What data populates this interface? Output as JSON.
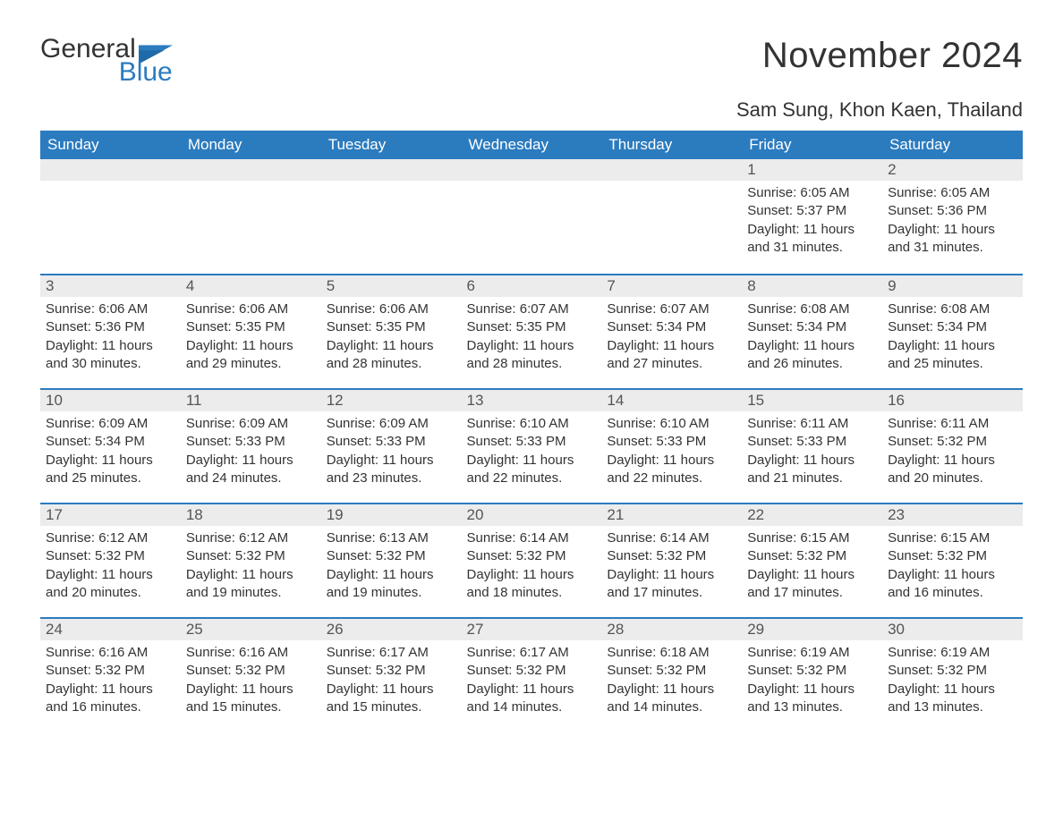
{
  "logo": {
    "word1": "General",
    "word2": "Blue",
    "word1_color": "#333333",
    "word2_color": "#2b7bbf",
    "flag_color": "#2b7bbf"
  },
  "title": "November 2024",
  "location": "Sam Sung, Khon Kaen, Thailand",
  "style": {
    "header_bg": "#2b7bbf",
    "header_fg": "#ffffff",
    "daynum_bg": "#ececec",
    "row_border": "#2b7bbf",
    "body_fg": "#333333",
    "page_bg": "#ffffff",
    "th_fontsize": 17,
    "title_fontsize": 40,
    "location_fontsize": 22,
    "body_fontsize": 15
  },
  "weekdays": [
    "Sunday",
    "Monday",
    "Tuesday",
    "Wednesday",
    "Thursday",
    "Friday",
    "Saturday"
  ],
  "leading_blanks": 5,
  "days": [
    {
      "n": 1,
      "sunrise": "6:05 AM",
      "sunset": "5:37 PM",
      "daylight": "11 hours and 31 minutes."
    },
    {
      "n": 2,
      "sunrise": "6:05 AM",
      "sunset": "5:36 PM",
      "daylight": "11 hours and 31 minutes."
    },
    {
      "n": 3,
      "sunrise": "6:06 AM",
      "sunset": "5:36 PM",
      "daylight": "11 hours and 30 minutes."
    },
    {
      "n": 4,
      "sunrise": "6:06 AM",
      "sunset": "5:35 PM",
      "daylight": "11 hours and 29 minutes."
    },
    {
      "n": 5,
      "sunrise": "6:06 AM",
      "sunset": "5:35 PM",
      "daylight": "11 hours and 28 minutes."
    },
    {
      "n": 6,
      "sunrise": "6:07 AM",
      "sunset": "5:35 PM",
      "daylight": "11 hours and 28 minutes."
    },
    {
      "n": 7,
      "sunrise": "6:07 AM",
      "sunset": "5:34 PM",
      "daylight": "11 hours and 27 minutes."
    },
    {
      "n": 8,
      "sunrise": "6:08 AM",
      "sunset": "5:34 PM",
      "daylight": "11 hours and 26 minutes."
    },
    {
      "n": 9,
      "sunrise": "6:08 AM",
      "sunset": "5:34 PM",
      "daylight": "11 hours and 25 minutes."
    },
    {
      "n": 10,
      "sunrise": "6:09 AM",
      "sunset": "5:34 PM",
      "daylight": "11 hours and 25 minutes."
    },
    {
      "n": 11,
      "sunrise": "6:09 AM",
      "sunset": "5:33 PM",
      "daylight": "11 hours and 24 minutes."
    },
    {
      "n": 12,
      "sunrise": "6:09 AM",
      "sunset": "5:33 PM",
      "daylight": "11 hours and 23 minutes."
    },
    {
      "n": 13,
      "sunrise": "6:10 AM",
      "sunset": "5:33 PM",
      "daylight": "11 hours and 22 minutes."
    },
    {
      "n": 14,
      "sunrise": "6:10 AM",
      "sunset": "5:33 PM",
      "daylight": "11 hours and 22 minutes."
    },
    {
      "n": 15,
      "sunrise": "6:11 AM",
      "sunset": "5:33 PM",
      "daylight": "11 hours and 21 minutes."
    },
    {
      "n": 16,
      "sunrise": "6:11 AM",
      "sunset": "5:32 PM",
      "daylight": "11 hours and 20 minutes."
    },
    {
      "n": 17,
      "sunrise": "6:12 AM",
      "sunset": "5:32 PM",
      "daylight": "11 hours and 20 minutes."
    },
    {
      "n": 18,
      "sunrise": "6:12 AM",
      "sunset": "5:32 PM",
      "daylight": "11 hours and 19 minutes."
    },
    {
      "n": 19,
      "sunrise": "6:13 AM",
      "sunset": "5:32 PM",
      "daylight": "11 hours and 19 minutes."
    },
    {
      "n": 20,
      "sunrise": "6:14 AM",
      "sunset": "5:32 PM",
      "daylight": "11 hours and 18 minutes."
    },
    {
      "n": 21,
      "sunrise": "6:14 AM",
      "sunset": "5:32 PM",
      "daylight": "11 hours and 17 minutes."
    },
    {
      "n": 22,
      "sunrise": "6:15 AM",
      "sunset": "5:32 PM",
      "daylight": "11 hours and 17 minutes."
    },
    {
      "n": 23,
      "sunrise": "6:15 AM",
      "sunset": "5:32 PM",
      "daylight": "11 hours and 16 minutes."
    },
    {
      "n": 24,
      "sunrise": "6:16 AM",
      "sunset": "5:32 PM",
      "daylight": "11 hours and 16 minutes."
    },
    {
      "n": 25,
      "sunrise": "6:16 AM",
      "sunset": "5:32 PM",
      "daylight": "11 hours and 15 minutes."
    },
    {
      "n": 26,
      "sunrise": "6:17 AM",
      "sunset": "5:32 PM",
      "daylight": "11 hours and 15 minutes."
    },
    {
      "n": 27,
      "sunrise": "6:17 AM",
      "sunset": "5:32 PM",
      "daylight": "11 hours and 14 minutes."
    },
    {
      "n": 28,
      "sunrise": "6:18 AM",
      "sunset": "5:32 PM",
      "daylight": "11 hours and 14 minutes."
    },
    {
      "n": 29,
      "sunrise": "6:19 AM",
      "sunset": "5:32 PM",
      "daylight": "11 hours and 13 minutes."
    },
    {
      "n": 30,
      "sunrise": "6:19 AM",
      "sunset": "5:32 PM",
      "daylight": "11 hours and 13 minutes."
    }
  ],
  "labels": {
    "sunrise": "Sunrise: ",
    "sunset": "Sunset: ",
    "daylight": "Daylight: "
  }
}
